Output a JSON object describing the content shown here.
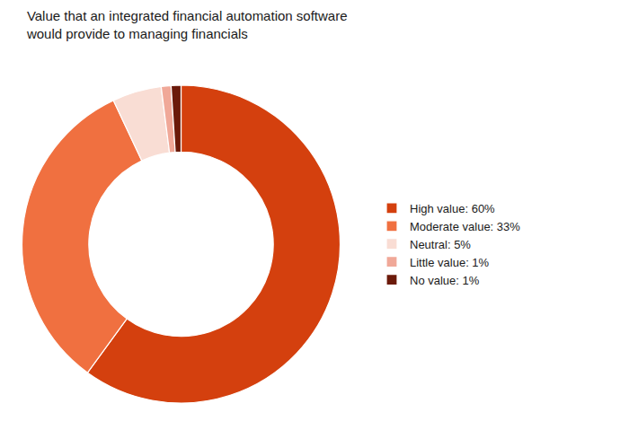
{
  "chart_data": {
    "type": "pie",
    "title": "Value that an integrated financial automation software\nwould provide to managing financials",
    "categories": [
      "High value: 60%",
      "Moderate value: 33%",
      "Neutral: 5%",
      "Little value: 1%",
      "No value: 1%"
    ],
    "values": [
      60,
      33,
      5,
      1,
      1
    ],
    "colors": [
      "#d4400e",
      "#f07040",
      "#f9ddd4",
      "#f0a898",
      "#6b1a0a"
    ],
    "legend": "right"
  }
}
